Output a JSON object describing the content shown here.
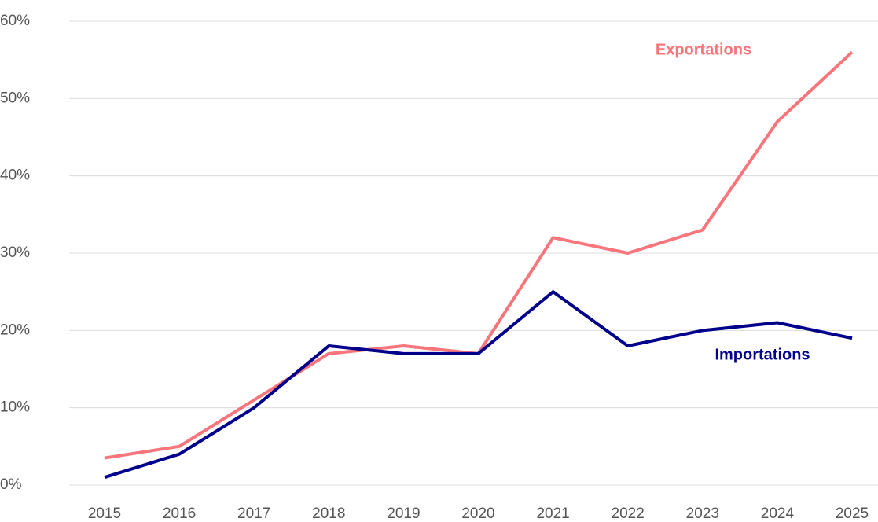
{
  "chart_data": {
    "type": "line",
    "categories": [
      "2015",
      "2016",
      "2017",
      "2018",
      "2019",
      "2020",
      "2021",
      "2022",
      "2023",
      "2024",
      "2025"
    ],
    "series": [
      {
        "name": "Exportations",
        "color": "#f8767b",
        "values": [
          3.5,
          5,
          11,
          17,
          18,
          17,
          32,
          30,
          33,
          47,
          56
        ]
      },
      {
        "name": "Importations",
        "color": "#00008b",
        "values": [
          1,
          4,
          10,
          18,
          17,
          17,
          25,
          18,
          20,
          21,
          19
        ]
      }
    ],
    "ylim": [
      0,
      60
    ],
    "yticks": [
      {
        "value": 0,
        "label": "0%"
      },
      {
        "value": 10,
        "label": "10%"
      },
      {
        "value": 20,
        "label": "20%"
      },
      {
        "value": 30,
        "label": "30%"
      },
      {
        "value": 40,
        "label": "40%"
      },
      {
        "value": 50,
        "label": "50%"
      },
      {
        "value": 60,
        "label": "60%"
      }
    ],
    "grid": true
  }
}
